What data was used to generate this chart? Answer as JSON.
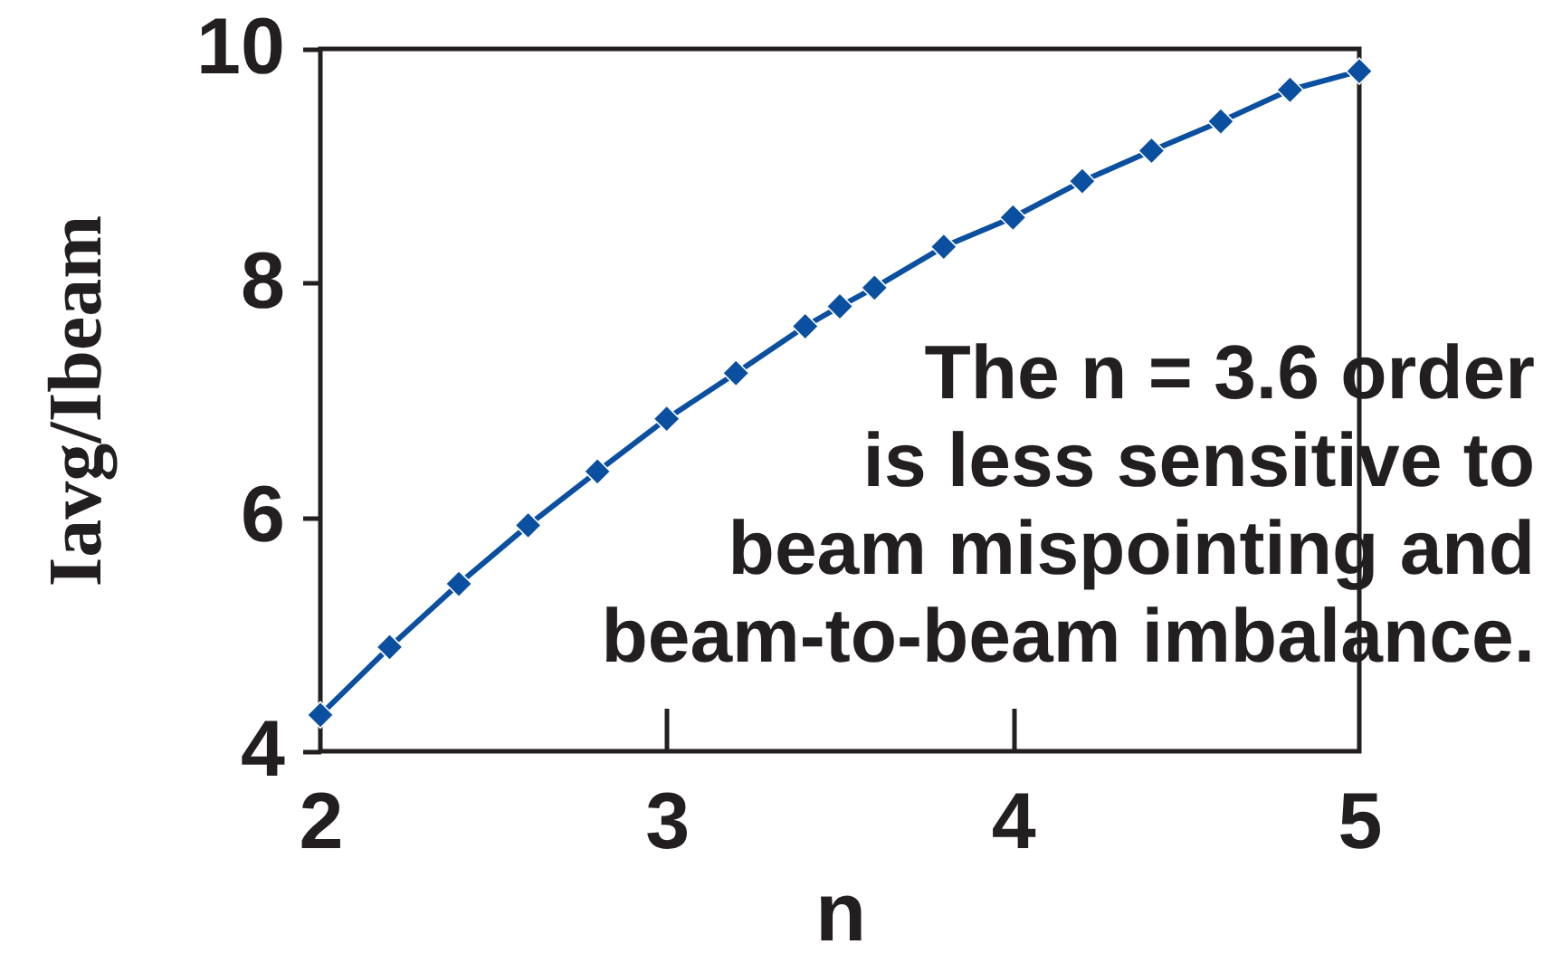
{
  "chart_data": {
    "type": "line",
    "xlabel": "n",
    "ylabel": "Iavg/Ibeam",
    "annotations": [
      "The n = 3.6 order\nis less sensitive to\nbeam mispointing and\nbeam-to-beam imbalance."
    ],
    "x": [
      2.0,
      2.2,
      2.4,
      2.6,
      2.8,
      3.0,
      3.2,
      3.4,
      3.5,
      3.6,
      3.8,
      4.0,
      4.2,
      4.4,
      4.6,
      4.8,
      5.0
    ],
    "series": [
      {
        "color": "#0b4fa0",
        "values": [
          4.31,
          4.89,
          5.43,
          5.93,
          6.39,
          6.84,
          7.23,
          7.63,
          7.8,
          7.96,
          8.31,
          8.56,
          8.87,
          9.13,
          9.38,
          9.65,
          9.81
        ]
      }
    ],
    "xlim": [
      2,
      5
    ],
    "ylim": [
      4,
      10
    ],
    "xticks": [
      2,
      3,
      4,
      5
    ],
    "yticks": [
      4,
      6,
      8,
      10
    ],
    "grid": false,
    "marker": "diamond",
    "line_style": "solid"
  }
}
